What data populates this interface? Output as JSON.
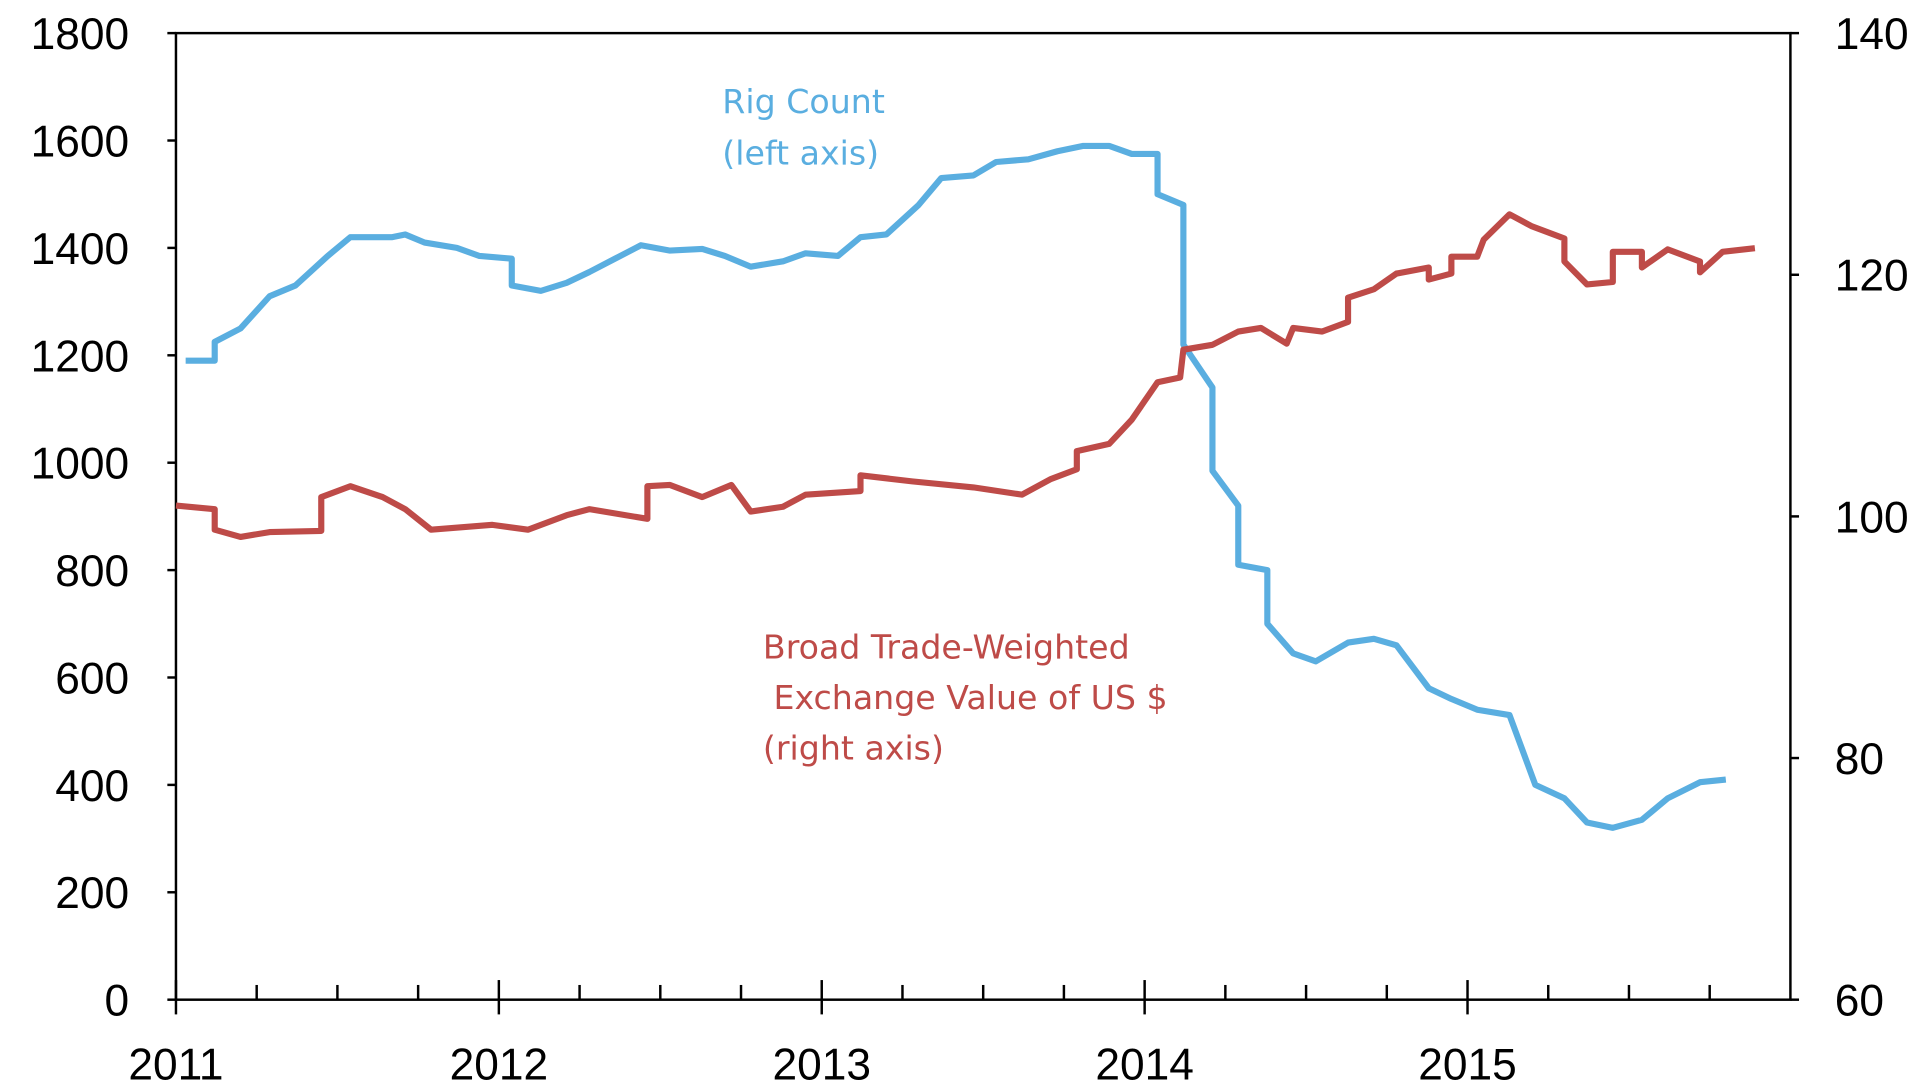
{
  "chart_data": {
    "type": "line",
    "xlim": [
      2011,
      2016
    ],
    "xticks": [
      2011,
      2012,
      2013,
      2014,
      2015
    ],
    "xminorticks": [
      2011.25,
      2011.5,
      2011.75,
      2012.25,
      2012.5,
      2012.75,
      2013.25,
      2013.5,
      2013.75,
      2014.25,
      2014.5,
      2014.75,
      2015.25,
      2015.5,
      2015.75
    ],
    "ylim": [
      0,
      1800
    ],
    "yticks": [
      0,
      200,
      400,
      600,
      800,
      1000,
      1200,
      1400,
      1600,
      1800
    ],
    "y2lim": [
      60,
      140
    ],
    "y2ticks": [
      60,
      80,
      100,
      120,
      140
    ],
    "series": [
      {
        "label": [
          "Rig Count",
          "(left axis)"
        ],
        "color": "#5aaee0",
        "axis": "y",
        "x": [
          2011.03,
          2011.12,
          2011.12,
          2011.2,
          2011.29,
          2011.37,
          2011.47,
          2011.54,
          2011.67,
          2011.71,
          2011.77,
          2011.87,
          2011.94,
          2012.04,
          2012.04,
          2012.13,
          2012.21,
          2012.28,
          2012.36,
          2012.44,
          2012.53,
          2012.63,
          2012.7,
          2012.78,
          2012.88,
          2012.95,
          2013.05,
          2013.12,
          2013.2,
          2013.3,
          2013.37,
          2013.47,
          2013.54,
          2013.64,
          2013.73,
          2013.81,
          2013.89,
          2013.96,
          2014.04,
          2014.04,
          2014.12,
          2014.12,
          2014.21,
          2014.21,
          2014.29,
          2014.29,
          2014.38,
          2014.38,
          2014.46,
          2014.53,
          2014.63,
          2014.71,
          2014.78,
          2014.88,
          2014.95,
          2015.03,
          2015.13,
          2015.21,
          2015.3,
          2015.37,
          2015.45,
          2015.54,
          2015.62,
          2015.72,
          2015.8
        ],
        "values": [
          1190,
          1190,
          1225,
          1250,
          1310,
          1330,
          1385,
          1420,
          1420,
          1425,
          1410,
          1400,
          1385,
          1380,
          1330,
          1320,
          1335,
          1355,
          1380,
          1405,
          1395,
          1398,
          1385,
          1365,
          1375,
          1390,
          1385,
          1420,
          1425,
          1480,
          1530,
          1535,
          1560,
          1565,
          1580,
          1590,
          1590,
          1575,
          1575,
          1500,
          1480,
          1220,
          1140,
          985,
          920,
          810,
          800,
          700,
          645,
          630,
          665,
          672,
          660,
          580,
          560,
          540,
          530,
          400,
          375,
          330,
          320,
          335,
          375,
          405,
          410
        ]
      },
      {
        "label": [
          "Broad Trade-Weighted",
          " Exchange Value of US $",
          "(right axis)"
        ],
        "color": "#be4b48",
        "axis": "y2",
        "x": [
          2011.0,
          2011.12,
          2011.12,
          2011.2,
          2011.29,
          2011.45,
          2011.45,
          2011.54,
          2011.64,
          2011.71,
          2011.79,
          2011.98,
          2012.09,
          2012.21,
          2012.28,
          2012.46,
          2012.46,
          2012.53,
          2012.63,
          2012.72,
          2012.78,
          2012.88,
          2012.95,
          2013.12,
          2013.12,
          2013.28,
          2013.47,
          2013.62,
          2013.71,
          2013.79,
          2013.79,
          2013.89,
          2013.96,
          2014.04,
          2014.11,
          2014.12,
          2014.21,
          2014.29,
          2014.36,
          2014.44,
          2014.46,
          2014.55,
          2014.63,
          2014.63,
          2014.71,
          2014.78,
          2014.88,
          2014.88,
          2014.95,
          2014.95,
          2015.03,
          2015.05,
          2015.13,
          2015.2,
          2015.3,
          2015.3,
          2015.37,
          2015.45,
          2015.45,
          2015.54,
          2015.54,
          2015.62,
          2015.72,
          2015.72,
          2015.79,
          2015.89
        ],
        "values": [
          100.9,
          100.6,
          98.9,
          98.3,
          98.7,
          98.8,
          101.6,
          102.5,
          101.6,
          100.6,
          98.9,
          99.3,
          98.9,
          100.1,
          100.6,
          99.8,
          102.5,
          102.6,
          101.6,
          102.6,
          100.4,
          100.8,
          101.8,
          102.1,
          103.4,
          102.9,
          102.4,
          101.8,
          103.1,
          103.9,
          105.4,
          106,
          108,
          111.1,
          111.5,
          113.8,
          114.2,
          115.3,
          115.6,
          114.3,
          115.6,
          115.3,
          116.1,
          118.1,
          118.8,
          120.1,
          120.6,
          119.6,
          120.1,
          121.5,
          121.5,
          122.9,
          125,
          124,
          123,
          121.1,
          119.2,
          119.4,
          121.9,
          121.9,
          120.6,
          122.1,
          121.1,
          120.2,
          121.9,
          122.2
        ]
      }
    ]
  }
}
